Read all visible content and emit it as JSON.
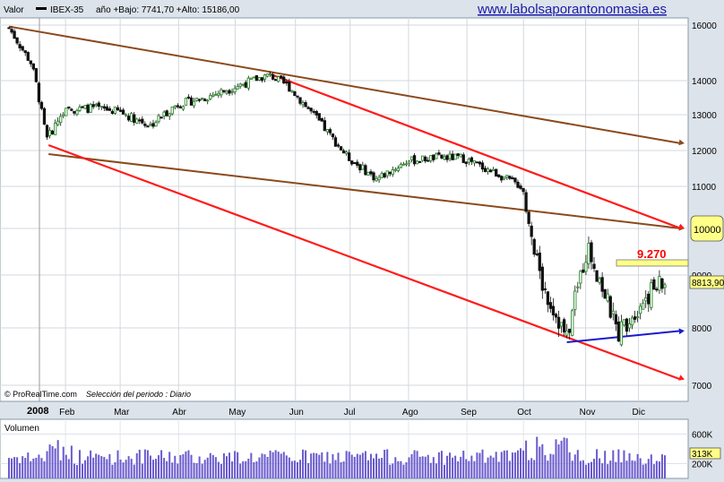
{
  "header": {
    "valor_label": "Valor",
    "instrument": "IBEX-35",
    "range_text": "año +Bajo: 7741,70 +Alto: 15186,00",
    "site": "www.labolsaporantonomasia.es"
  },
  "footer_note": {
    "brand": "© ProRealTime.com",
    "period": "Selección del periodo : Diario"
  },
  "colors": {
    "up_candle": "#2e8b2e",
    "down_candle": "#111111",
    "red_channel": "#ff1a1a",
    "brown_channel": "#8b4a1c",
    "blue_support": "#1a1acc",
    "level_box": "#ffff88",
    "level_text": "#ff0000",
    "volume_bar": "#6a5acd"
  },
  "chart_data": [
    {
      "type": "candlestick",
      "title": "IBEX-35",
      "year_label": "2008",
      "x_ticks": [
        "Feb",
        "Mar",
        "Abr",
        "May",
        "Jun",
        "Jul",
        "Ago",
        "Sep",
        "Oct",
        "Nov",
        "Dic"
      ],
      "y_ticks": [
        16000,
        14000,
        13000,
        12000,
        11000,
        10000,
        9000,
        8000,
        7000
      ],
      "ylim": [
        6750,
        16300
      ],
      "grid": true,
      "annotations": {
        "resistance_level_label": "9.270",
        "resistance_level": 9270,
        "last_price_label": "8813,90",
        "last_price": 8813.9,
        "channel_marker_label": "10000",
        "channel_marker": 10000
      },
      "trendlines": [
        {
          "color": "brown",
          "from": [
            "2008-01-02",
            15950
          ],
          "to": [
            "2008-12-31",
            12200
          ]
        },
        {
          "color": "brown",
          "from": [
            "2008-01-23",
            11900
          ],
          "to": [
            "2008-12-31",
            10000
          ]
        },
        {
          "color": "red",
          "from": [
            "2008-05-19",
            14250
          ],
          "to": [
            "2008-12-31",
            10000
          ]
        },
        {
          "color": "red",
          "from": [
            "2008-01-23",
            12150
          ],
          "to": [
            "2008-12-31",
            7100
          ]
        },
        {
          "color": "blue",
          "from": [
            "2008-10-24",
            7750
          ],
          "to": [
            "2008-12-31",
            7950
          ]
        }
      ],
      "closes_monthly_approx": [
        [
          "2008-01-02",
          15900
        ],
        [
          "2008-01-14",
          14600
        ],
        [
          "2008-01-22",
          12300
        ],
        [
          "2008-01-31",
          13100
        ],
        [
          "2008-02-15",
          13200
        ],
        [
          "2008-02-29",
          13100
        ],
        [
          "2008-03-17",
          12700
        ],
        [
          "2008-03-31",
          13300
        ],
        [
          "2008-04-15",
          13500
        ],
        [
          "2008-04-30",
          13800
        ],
        [
          "2008-05-19",
          14200
        ],
        [
          "2008-05-30",
          13800
        ],
        [
          "2008-06-13",
          12900
        ],
        [
          "2008-06-30",
          11800
        ],
        [
          "2008-07-15",
          11200
        ],
        [
          "2008-07-31",
          11700
        ],
        [
          "2008-08-15",
          11800
        ],
        [
          "2008-08-29",
          11800
        ],
        [
          "2008-09-15",
          11400
        ],
        [
          "2008-09-30",
          11000
        ],
        [
          "2008-10-10",
          8900
        ],
        [
          "2008-10-24",
          7800
        ],
        [
          "2008-11-04",
          9600
        ],
        [
          "2008-11-20",
          7900
        ],
        [
          "2008-12-05",
          8600
        ],
        [
          "2008-12-12",
          8814
        ]
      ]
    },
    {
      "type": "bar",
      "title": "Volumen",
      "y_ticks": [
        "600K",
        "200K"
      ],
      "last_value_label": "313K",
      "last_value": 313000,
      "ylim": [
        0,
        800000
      ]
    }
  ]
}
